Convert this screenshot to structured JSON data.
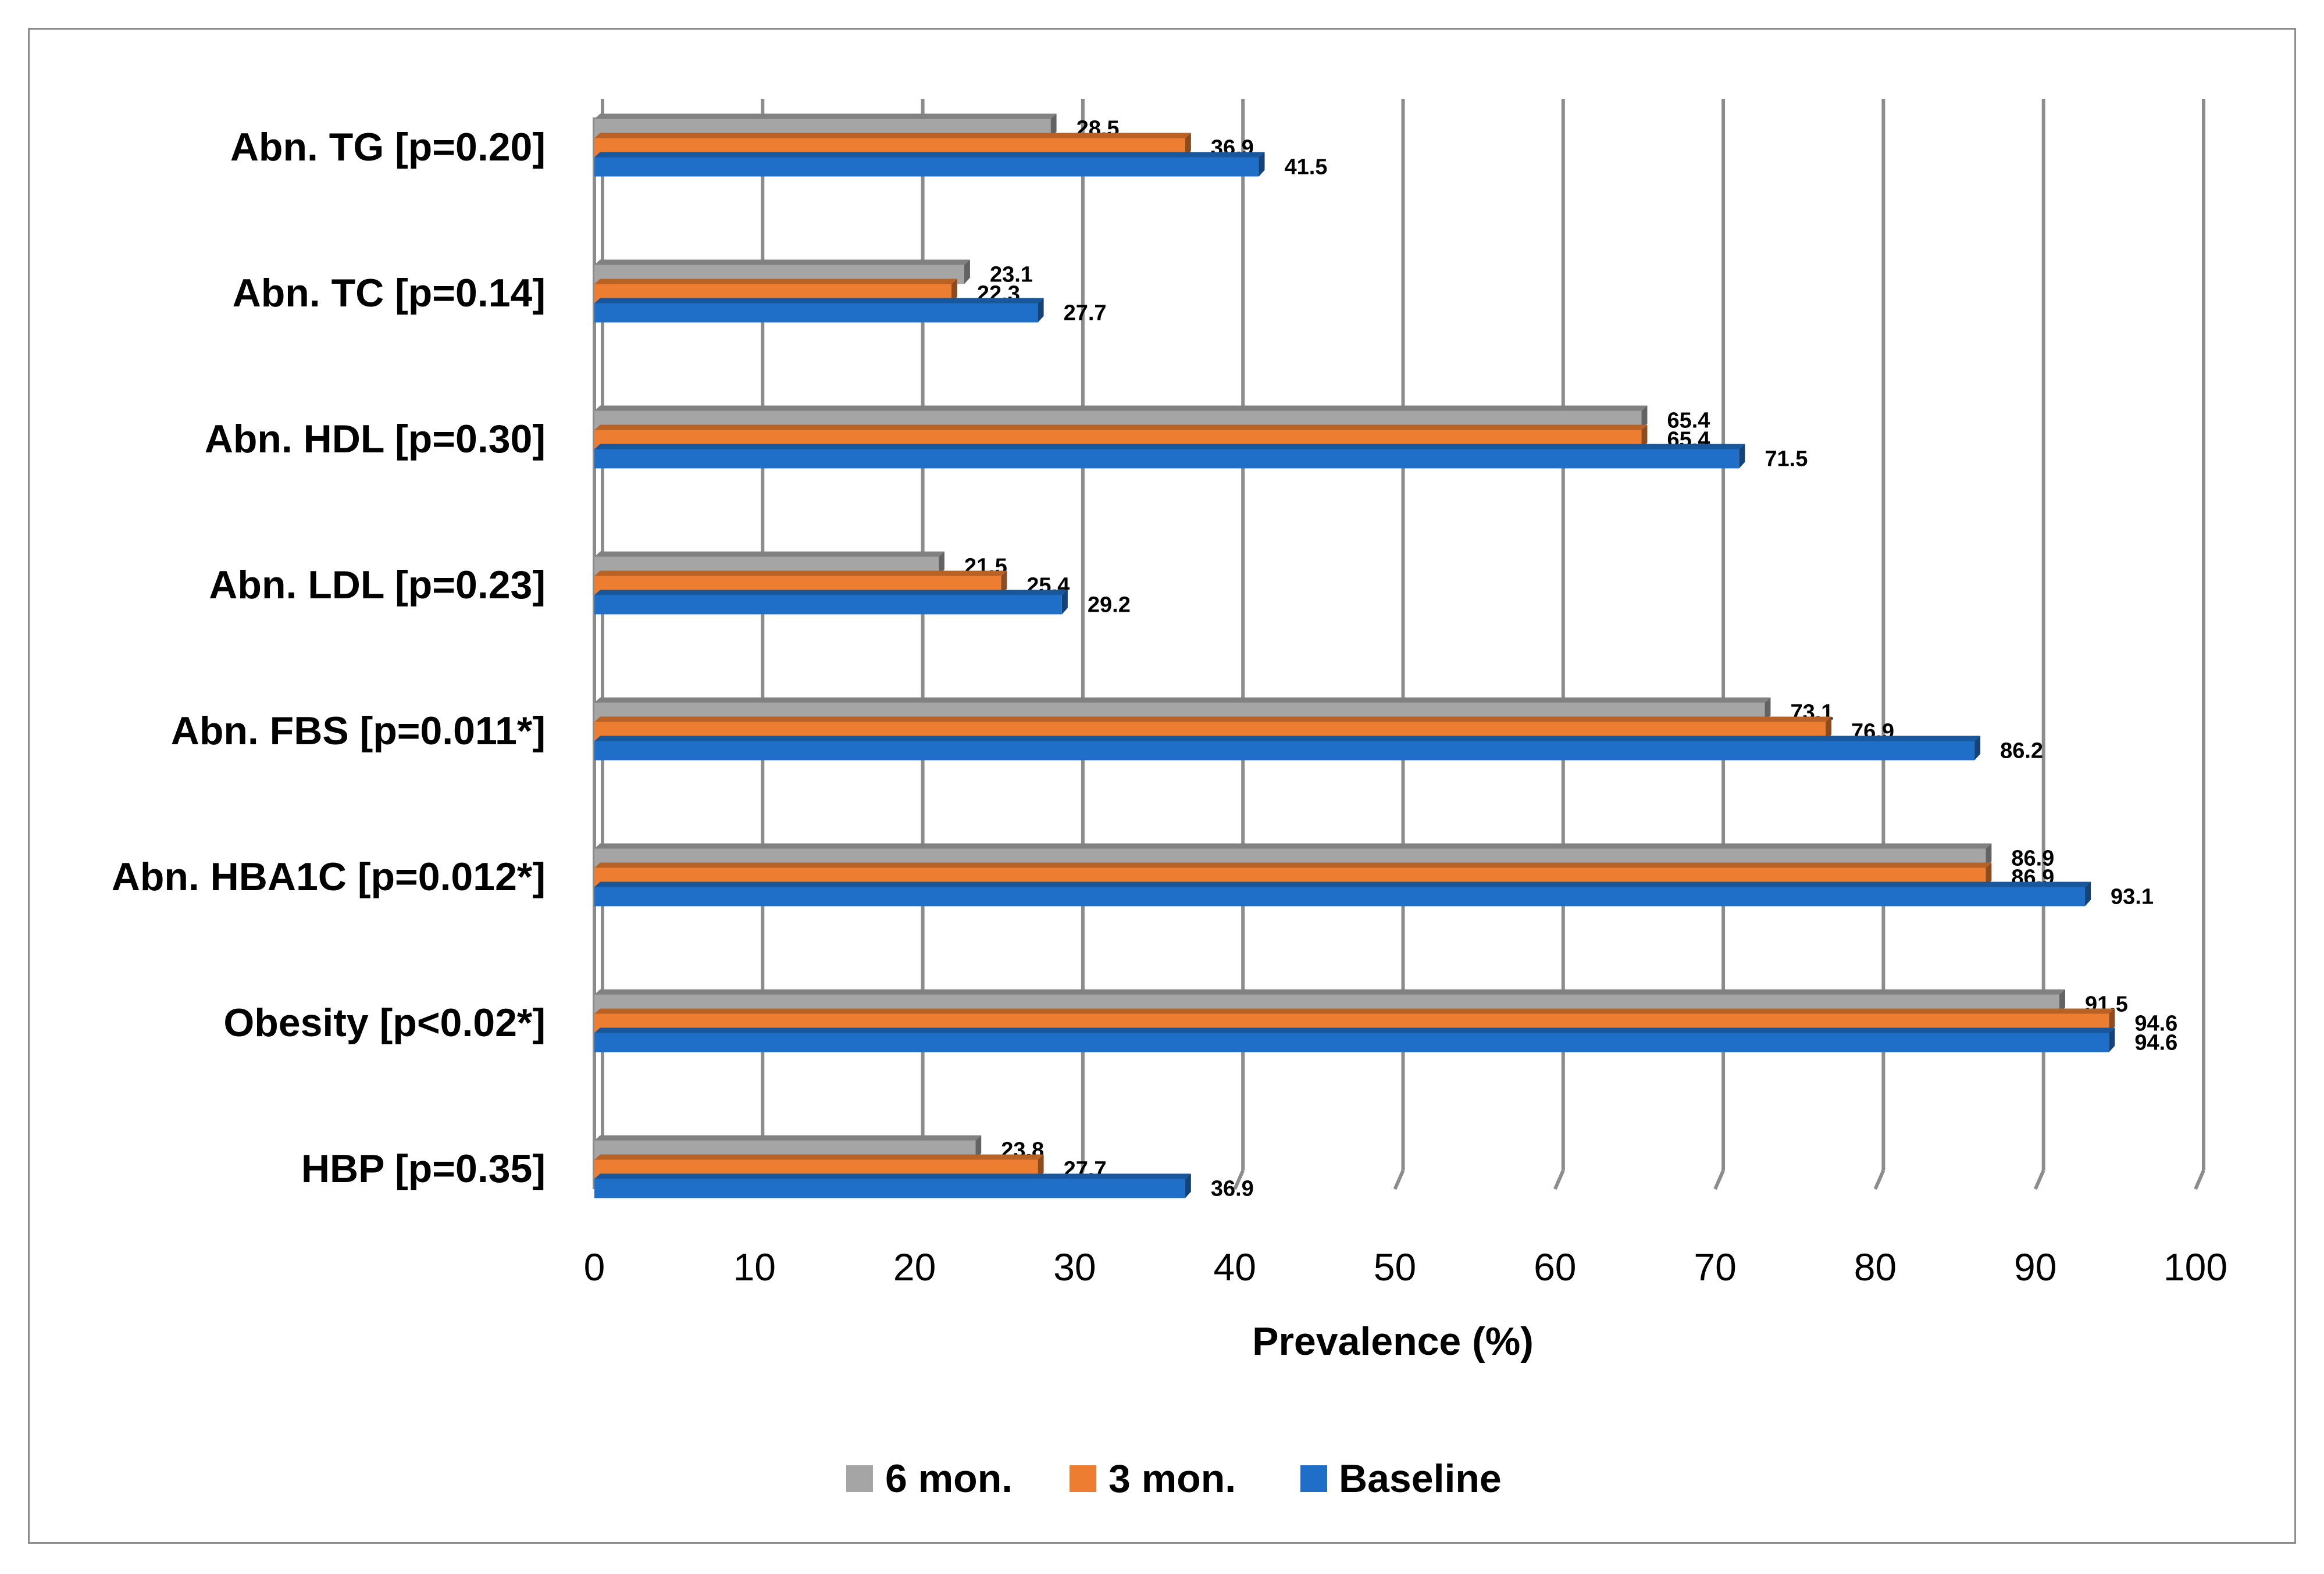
{
  "chart_data": {
    "type": "bar",
    "orientation": "horizontal",
    "title": "",
    "xlabel": "Prevalence (%)",
    "ylabel": "",
    "xlim": [
      0,
      100
    ],
    "x_ticks": [
      "0",
      "10",
      "20",
      "30",
      "40",
      "50",
      "60",
      "70",
      "80",
      "90",
      "100"
    ],
    "grid": true,
    "legend_position": "bottom",
    "categories": [
      "Abn. TG [p=0.20]",
      "Abn. TC [p=0.14]",
      "Abn. HDL [p=0.30]",
      "Abn. LDL [p=0.23]",
      "Abn. FBS [p=0.011*]",
      "Abn. HBA1C [p=0.012*]",
      "Obesity [p<0.02*]",
      "HBP [p=0.35]"
    ],
    "series": [
      {
        "name": "6 mon.",
        "color": "#a5a5a5",
        "values": [
          28.5,
          23.1,
          65.4,
          21.5,
          73.1,
          86.9,
          91.5,
          23.8
        ],
        "labels": [
          "28.5",
          "23.1",
          "65.4",
          "21.5",
          "73.1",
          "86.9",
          "91.5",
          "23.8"
        ]
      },
      {
        "name": "3 mon.",
        "color": "#ed7d31",
        "values": [
          36.9,
          22.3,
          65.4,
          25.4,
          76.9,
          86.9,
          94.6,
          27.7
        ],
        "labels": [
          "36.9",
          "22.3",
          "65.4",
          "25.4",
          "76.9",
          "86.9",
          "94.6",
          "27.7"
        ]
      },
      {
        "name": "Baseline",
        "color": "#1f6fc8",
        "values": [
          41.5,
          27.7,
          71.5,
          29.2,
          86.2,
          93.1,
          94.6,
          36.9
        ],
        "labels": [
          "41.5",
          "27.7",
          "71.5",
          "29.2",
          "86.2",
          "93.1",
          "94.6",
          "36.9"
        ]
      }
    ]
  }
}
